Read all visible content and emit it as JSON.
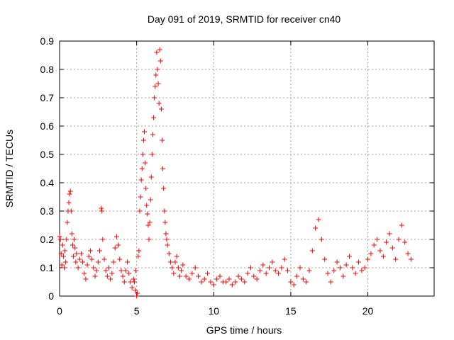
{
  "chart_data": {
    "type": "scatter",
    "title": "Day 091 of 2019, SRMTID for receiver cn40",
    "xlabel": "GPS time / hours",
    "ylabel": "SRMTID / TECUs",
    "xlim": [
      0,
      24.3
    ],
    "ylim": [
      0,
      0.9
    ],
    "xticks": [
      0,
      5,
      10,
      15,
      20
    ],
    "yticks": [
      0,
      0.1,
      0.2,
      0.3,
      0.4,
      0.5,
      0.6,
      0.7,
      0.8,
      0.9
    ],
    "xtick_labels": [
      "0",
      "5",
      "10",
      "15",
      "20"
    ],
    "ytick_labels": [
      "0",
      "0.1",
      "0.2",
      "0.3",
      "0.4",
      "0.5",
      "0.6",
      "0.7",
      "0.8",
      "0.9"
    ],
    "grid": true,
    "marker": "+",
    "series": [
      {
        "name": "SRMTID",
        "color": "#ff0000",
        "x": [
          0.0,
          0.05,
          0.1,
          0.15,
          0.2,
          0.25,
          0.3,
          0.35,
          0.4,
          0.45,
          0.5,
          0.55,
          0.6,
          0.65,
          0.7,
          0.75,
          0.8,
          0.85,
          0.9,
          0.95,
          1.0,
          1.05,
          1.1,
          1.2,
          1.3,
          1.4,
          1.5,
          1.6,
          1.7,
          1.8,
          1.9,
          2.0,
          2.1,
          2.2,
          2.3,
          2.4,
          2.5,
          2.6,
          2.7,
          2.75,
          2.8,
          2.9,
          3.0,
          3.1,
          3.2,
          3.3,
          3.4,
          3.5,
          3.6,
          3.7,
          3.8,
          3.9,
          4.0,
          4.1,
          4.2,
          4.3,
          4.4,
          4.5,
          4.6,
          4.7,
          4.8,
          4.85,
          4.9,
          4.95,
          5.0,
          5.05,
          5.1,
          5.15,
          5.2,
          5.25,
          5.3,
          5.35,
          5.4,
          5.45,
          5.5,
          5.55,
          5.6,
          5.65,
          5.7,
          5.75,
          5.8,
          5.85,
          5.9,
          5.95,
          6.0,
          6.05,
          6.1,
          6.15,
          6.2,
          6.25,
          6.3,
          6.35,
          6.4,
          6.45,
          6.5,
          6.55,
          6.6,
          6.65,
          6.7,
          6.75,
          6.8,
          6.85,
          6.9,
          6.95,
          7.0,
          7.1,
          7.2,
          7.3,
          7.4,
          7.5,
          7.6,
          7.7,
          7.8,
          7.9,
          8.0,
          8.2,
          8.4,
          8.6,
          8.8,
          9.0,
          9.2,
          9.4,
          9.6,
          9.8,
          10.0,
          10.2,
          10.4,
          10.6,
          10.8,
          11.0,
          11.2,
          11.4,
          11.6,
          11.8,
          12.0,
          12.2,
          12.4,
          12.6,
          12.8,
          13.0,
          13.2,
          13.4,
          13.6,
          13.8,
          14.0,
          14.2,
          14.4,
          14.6,
          14.8,
          15.0,
          15.2,
          15.4,
          15.6,
          15.8,
          16.0,
          16.2,
          16.4,
          16.6,
          16.8,
          17.0,
          17.2,
          17.4,
          17.6,
          17.8,
          18.0,
          18.2,
          18.4,
          18.6,
          18.8,
          19.0,
          19.2,
          19.4,
          19.6,
          19.8,
          20.0,
          20.2,
          20.4,
          20.6,
          20.8,
          21.0,
          21.2,
          21.4,
          21.6,
          21.8,
          22.0,
          22.2,
          22.4,
          22.6,
          22.8
        ],
        "y": [
          0.21,
          0.2,
          0.15,
          0.11,
          0.18,
          0.14,
          0.1,
          0.16,
          0.12,
          0.2,
          0.26,
          0.3,
          0.33,
          0.36,
          0.37,
          0.3,
          0.22,
          0.18,
          0.14,
          0.2,
          0.17,
          0.12,
          0.15,
          0.1,
          0.13,
          0.15,
          0.12,
          0.08,
          0.06,
          0.11,
          0.14,
          0.16,
          0.13,
          0.1,
          0.07,
          0.09,
          0.12,
          0.16,
          0.31,
          0.3,
          0.2,
          0.13,
          0.09,
          0.07,
          0.1,
          0.06,
          0.08,
          0.12,
          0.17,
          0.21,
          0.18,
          0.13,
          0.09,
          0.07,
          0.05,
          0.09,
          0.12,
          0.08,
          0.05,
          0.03,
          0.06,
          0.05,
          0.02,
          0.09,
          0.0,
          0.01,
          0.14,
          0.16,
          0.3,
          0.35,
          0.41,
          0.45,
          0.5,
          0.55,
          0.58,
          0.47,
          0.38,
          0.32,
          0.29,
          0.25,
          0.2,
          0.26,
          0.34,
          0.42,
          0.5,
          0.57,
          0.63,
          0.7,
          0.74,
          0.78,
          0.86,
          0.8,
          0.75,
          0.68,
          0.87,
          0.83,
          0.66,
          0.55,
          0.45,
          0.38,
          0.3,
          0.26,
          0.22,
          0.2,
          0.18,
          0.15,
          0.12,
          0.1,
          0.08,
          0.12,
          0.14,
          0.1,
          0.07,
          0.09,
          0.11,
          0.07,
          0.06,
          0.08,
          0.1,
          0.07,
          0.05,
          0.06,
          0.08,
          0.05,
          0.04,
          0.06,
          0.07,
          0.05,
          0.05,
          0.06,
          0.04,
          0.05,
          0.07,
          0.06,
          0.05,
          0.08,
          0.1,
          0.07,
          0.06,
          0.09,
          0.11,
          0.08,
          0.1,
          0.12,
          0.09,
          0.08,
          0.1,
          0.13,
          0.09,
          0.05,
          0.04,
          0.07,
          0.1,
          0.06,
          0.05,
          0.09,
          0.16,
          0.24,
          0.27,
          0.2,
          0.13,
          0.08,
          0.05,
          0.09,
          0.12,
          0.1,
          0.07,
          0.11,
          0.14,
          0.1,
          0.08,
          0.12,
          0.09,
          0.1,
          0.13,
          0.15,
          0.18,
          0.2,
          0.16,
          0.14,
          0.19,
          0.22,
          0.17,
          0.13,
          0.2,
          0.25,
          0.19,
          0.15,
          0.13
        ]
      }
    ]
  }
}
